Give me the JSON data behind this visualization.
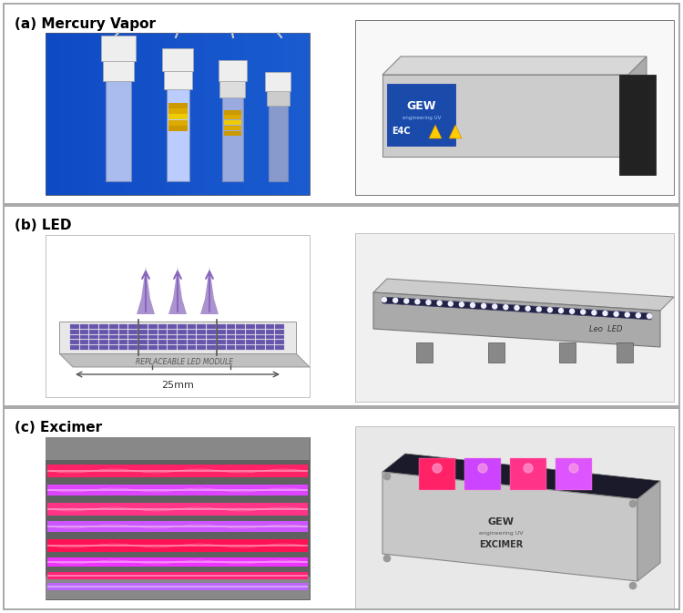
{
  "figure_width": 7.5,
  "figure_height": 6.73,
  "dpi": 100,
  "bg": "#ffffff",
  "panel_border": "#999999",
  "panel_border_lw": 1.2,
  "label_fontsize": 11,
  "label_color": "#000000",
  "panels": [
    {
      "label": "(a) Mercury Vapor",
      "left_bg": "#1155cc",
      "right_bg": "#f0f0f0"
    },
    {
      "label": "(b) LED",
      "left_bg": "#f5f5f5",
      "right_bg": "#f0f0f0"
    },
    {
      "label": "(c) Excimer",
      "left_bg": "#666666",
      "right_bg": "#e8e8e8"
    }
  ]
}
